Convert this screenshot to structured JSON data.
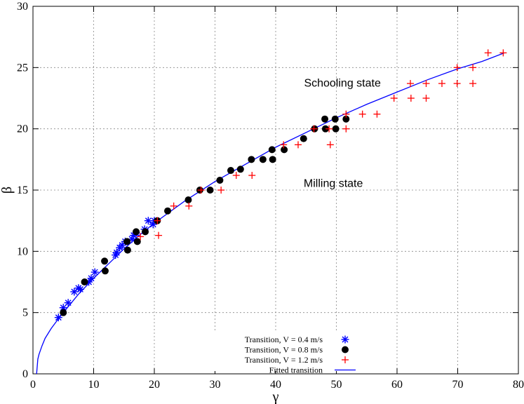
{
  "chart_data": {
    "type": "scatter",
    "xlabel": "γ",
    "ylabel": "β",
    "xlim": [
      0,
      80
    ],
    "ylim": [
      0,
      30
    ],
    "xticks": [
      0,
      10,
      20,
      30,
      40,
      50,
      60,
      70,
      80
    ],
    "yticks": [
      0,
      5,
      10,
      15,
      20,
      25,
      30
    ],
    "grid": true,
    "legend_position": "bottom-center",
    "annotations": [
      {
        "text": "Schooling state",
        "x": 51,
        "y": 23.8
      },
      {
        "text": "Milling state",
        "x": 49.5,
        "y": 15.6
      }
    ],
    "series": [
      {
        "name": "Transition, V = 0.4 m/s",
        "marker": "asterisk",
        "color": "#0000ff",
        "points": [
          [
            4.2,
            4.6
          ],
          [
            5.0,
            5.4
          ],
          [
            5.8,
            5.8
          ],
          [
            6.8,
            6.7
          ],
          [
            7.5,
            7.0
          ],
          [
            7.8,
            6.9
          ],
          [
            9.2,
            7.5
          ],
          [
            9.6,
            7.8
          ],
          [
            10.2,
            8.3
          ],
          [
            13.6,
            9.7
          ],
          [
            13.8,
            9.9
          ],
          [
            14.3,
            10.3
          ],
          [
            14.7,
            10.5
          ],
          [
            15.2,
            10.8
          ],
          [
            16.3,
            11.0
          ],
          [
            16.6,
            11.3
          ],
          [
            17.0,
            11.5
          ],
          [
            18.4,
            11.8
          ],
          [
            19.0,
            12.5
          ],
          [
            19.8,
            12.2
          ],
          [
            20.0,
            12.5
          ]
        ]
      },
      {
        "name": "Transition, V = 0.8 m/s",
        "marker": "circle",
        "color": "#000000",
        "points": [
          [
            5.0,
            5.0
          ],
          [
            8.5,
            7.5
          ],
          [
            11.8,
            9.2
          ],
          [
            11.9,
            8.4
          ],
          [
            15.5,
            10.8
          ],
          [
            15.6,
            10.1
          ],
          [
            17.0,
            11.6
          ],
          [
            17.2,
            10.8
          ],
          [
            18.5,
            11.6
          ],
          [
            20.5,
            12.5
          ],
          [
            22.2,
            13.3
          ],
          [
            25.6,
            14.2
          ],
          [
            27.5,
            15.0
          ],
          [
            29.2,
            15.0
          ],
          [
            30.8,
            15.8
          ],
          [
            32.6,
            16.6
          ],
          [
            34.2,
            16.7
          ],
          [
            36.0,
            17.5
          ],
          [
            37.9,
            17.5
          ],
          [
            39.4,
            18.3
          ],
          [
            39.5,
            17.5
          ],
          [
            41.4,
            18.3
          ],
          [
            44.6,
            19.2
          ],
          [
            46.4,
            20.0
          ],
          [
            48.1,
            20.8
          ],
          [
            48.2,
            20.0
          ],
          [
            49.8,
            20.8
          ],
          [
            49.9,
            20.0
          ],
          [
            51.6,
            20.8
          ]
        ]
      },
      {
        "name": "Transition, V = 1.2 m/s",
        "marker": "plus",
        "color": "#ff0000",
        "points": [
          [
            17.7,
            11.2
          ],
          [
            20.7,
            11.3
          ],
          [
            20.5,
            12.5
          ],
          [
            23.2,
            13.7
          ],
          [
            25.7,
            13.7
          ],
          [
            27.7,
            15.0
          ],
          [
            31.0,
            15.0
          ],
          [
            33.5,
            16.2
          ],
          [
            36.1,
            16.2
          ],
          [
            41.3,
            18.7
          ],
          [
            43.7,
            18.7
          ],
          [
            46.3,
            20.0
          ],
          [
            49.0,
            18.7
          ],
          [
            48.8,
            20.0
          ],
          [
            51.6,
            20.0
          ],
          [
            51.6,
            21.2
          ],
          [
            54.3,
            21.2
          ],
          [
            56.7,
            21.2
          ],
          [
            59.5,
            22.5
          ],
          [
            62.3,
            22.5
          ],
          [
            62.2,
            23.7
          ],
          [
            64.8,
            22.5
          ],
          [
            64.8,
            23.7
          ],
          [
            67.4,
            23.7
          ],
          [
            69.9,
            23.7
          ],
          [
            69.9,
            25.0
          ],
          [
            72.5,
            23.7
          ],
          [
            72.5,
            25.0
          ],
          [
            75.0,
            26.2
          ],
          [
            77.5,
            26.2
          ]
        ]
      },
      {
        "name": "Fitted transition",
        "marker": "line",
        "color": "#0000ff",
        "curve": [
          [
            0.6,
            0
          ],
          [
            0.8,
            1.2
          ],
          [
            1.0,
            1.6
          ],
          [
            1.5,
            2.3
          ],
          [
            2.0,
            2.9
          ],
          [
            3.0,
            3.7
          ],
          [
            4.2,
            4.5
          ],
          [
            5.0,
            5.0
          ],
          [
            7.5,
            6.5
          ],
          [
            10.0,
            7.8
          ],
          [
            12.5,
            9.0
          ],
          [
            15.0,
            10.2
          ],
          [
            17.5,
            11.3
          ],
          [
            20.0,
            12.3
          ],
          [
            25.0,
            14.1
          ],
          [
            30.0,
            15.7
          ],
          [
            35.0,
            17.1
          ],
          [
            40.0,
            18.5
          ],
          [
            45.0,
            19.7
          ],
          [
            50.0,
            20.9
          ],
          [
            55.0,
            22.0
          ],
          [
            60.0,
            23.0
          ],
          [
            65.0,
            24.0
          ],
          [
            70.0,
            24.9
          ],
          [
            74.0,
            25.5
          ],
          [
            77.7,
            26.2
          ]
        ]
      }
    ]
  }
}
